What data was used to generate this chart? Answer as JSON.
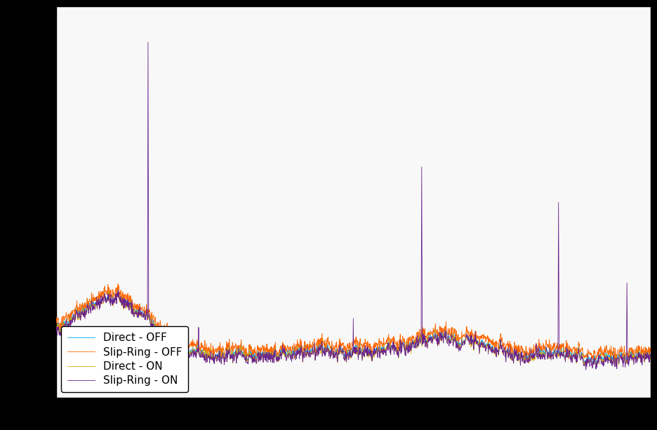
{
  "title": "",
  "xlabel": "",
  "ylabel": "",
  "legend_entries": [
    "Direct - OFF",
    "Slip-Ring - OFF",
    "Direct - ON",
    "Slip-Ring - ON"
  ],
  "line_colors": [
    "#00AAFF",
    "#FF6600",
    "#DDAA00",
    "#6B238E"
  ],
  "background_color": "#FFFFFF",
  "axes_bg_color": "#F8F8F8",
  "fig_bg_color": "#000000",
  "grid_color": "#CCCCCC",
  "seed": 42,
  "n_points": 2000
}
